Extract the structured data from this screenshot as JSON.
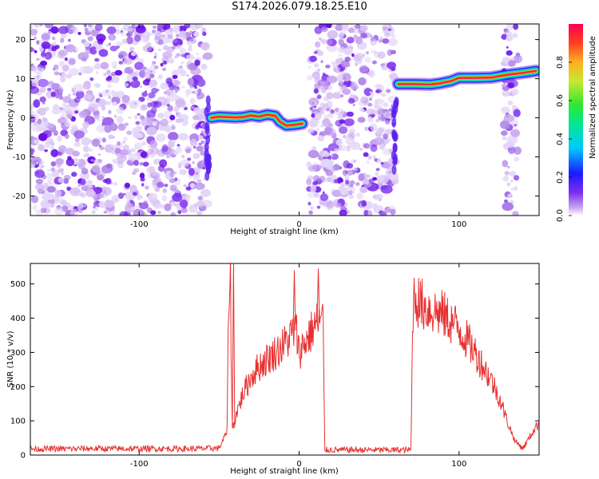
{
  "title": "S174.2026.079.18.25.E10",
  "chart_data": [
    {
      "type": "heatmap",
      "xlabel": "Height of straight line (km)",
      "ylabel": "Frequency (Hz)",
      "xlim": [
        -168,
        150
      ],
      "ylim": [
        -25,
        24
      ],
      "xticks": [
        -100,
        0,
        100
      ],
      "yticks": [
        -20,
        -10,
        0,
        10,
        20
      ],
      "noise_bands": [
        [
          -168,
          -57
        ],
        [
          6,
          60
        ],
        [
          128,
          137
        ]
      ],
      "ridge": [
        {
          "x": -55,
          "y": 0.0
        },
        {
          "x": -50,
          "y": 0.3
        },
        {
          "x": -45,
          "y": 0.2
        },
        {
          "x": -40,
          "y": 0.1
        },
        {
          "x": -35,
          "y": 0.2
        },
        {
          "x": -30,
          "y": 0.6
        },
        {
          "x": -25,
          "y": 0.3
        },
        {
          "x": -20,
          "y": 0.8
        },
        {
          "x": -15,
          "y": 0.5
        },
        {
          "x": -12,
          "y": -1.0
        },
        {
          "x": -8,
          "y": -2.0
        },
        {
          "x": -3,
          "y": -1.8
        },
        {
          "x": 2,
          "y": -1.5
        },
        {
          "x": 62,
          "y": 8.6
        },
        {
          "x": 72,
          "y": 8.6
        },
        {
          "x": 82,
          "y": 8.5
        },
        {
          "x": 88,
          "y": 8.8
        },
        {
          "x": 95,
          "y": 9.4
        },
        {
          "x": 100,
          "y": 10.2
        },
        {
          "x": 110,
          "y": 10.2
        },
        {
          "x": 120,
          "y": 10.3
        },
        {
          "x": 130,
          "y": 11.0
        },
        {
          "x": 140,
          "y": 11.5
        },
        {
          "x": 148,
          "y": 12.0
        }
      ],
      "colorbar": {
        "label": "Normalized spectral amplitude",
        "ticks": [
          "0.0",
          "0.2",
          "0.4",
          "0.6",
          "0.8"
        ],
        "range": [
          0,
          1
        ]
      }
    },
    {
      "type": "line",
      "xlabel": "Height of straight line (km)",
      "ylabel": "SNR (10 * v/v)",
      "xlim": [
        -168,
        150
      ],
      "ylim": [
        0,
        560
      ],
      "xticks": [
        -100,
        0,
        100
      ],
      "yticks": [
        0,
        100,
        200,
        300,
        400,
        500
      ],
      "series": [
        {
          "name": "SNR",
          "color": "#e83030",
          "x": [
            -168,
            -150,
            -130,
            -110,
            -90,
            -70,
            -50,
            -45,
            -44,
            -43,
            -42,
            -41,
            -40,
            -35,
            -30,
            -25,
            -20,
            -15,
            -10,
            -5,
            -2,
            0,
            5,
            10,
            12,
            15,
            16,
            20,
            40,
            60,
            70,
            71,
            72,
            75,
            80,
            90,
            100,
            110,
            120,
            125,
            130,
            135,
            140,
            145,
            150
          ],
          "y": [
            18,
            18,
            19,
            18,
            19,
            18,
            20,
            70,
            470,
            540,
            100,
            80,
            110,
            180,
            230,
            260,
            280,
            300,
            320,
            350,
            370,
            300,
            340,
            380,
            390,
            395,
            15,
            15,
            15,
            15,
            15,
            420,
            470,
            445,
            430,
            410,
            370,
            300,
            220,
            170,
            100,
            40,
            20,
            60,
            95
          ]
        }
      ],
      "peaks": [
        {
          "x": -41,
          "y": 560
        },
        {
          "x": -3,
          "y": 540
        },
        {
          "x": 12,
          "y": 545
        }
      ]
    }
  ]
}
